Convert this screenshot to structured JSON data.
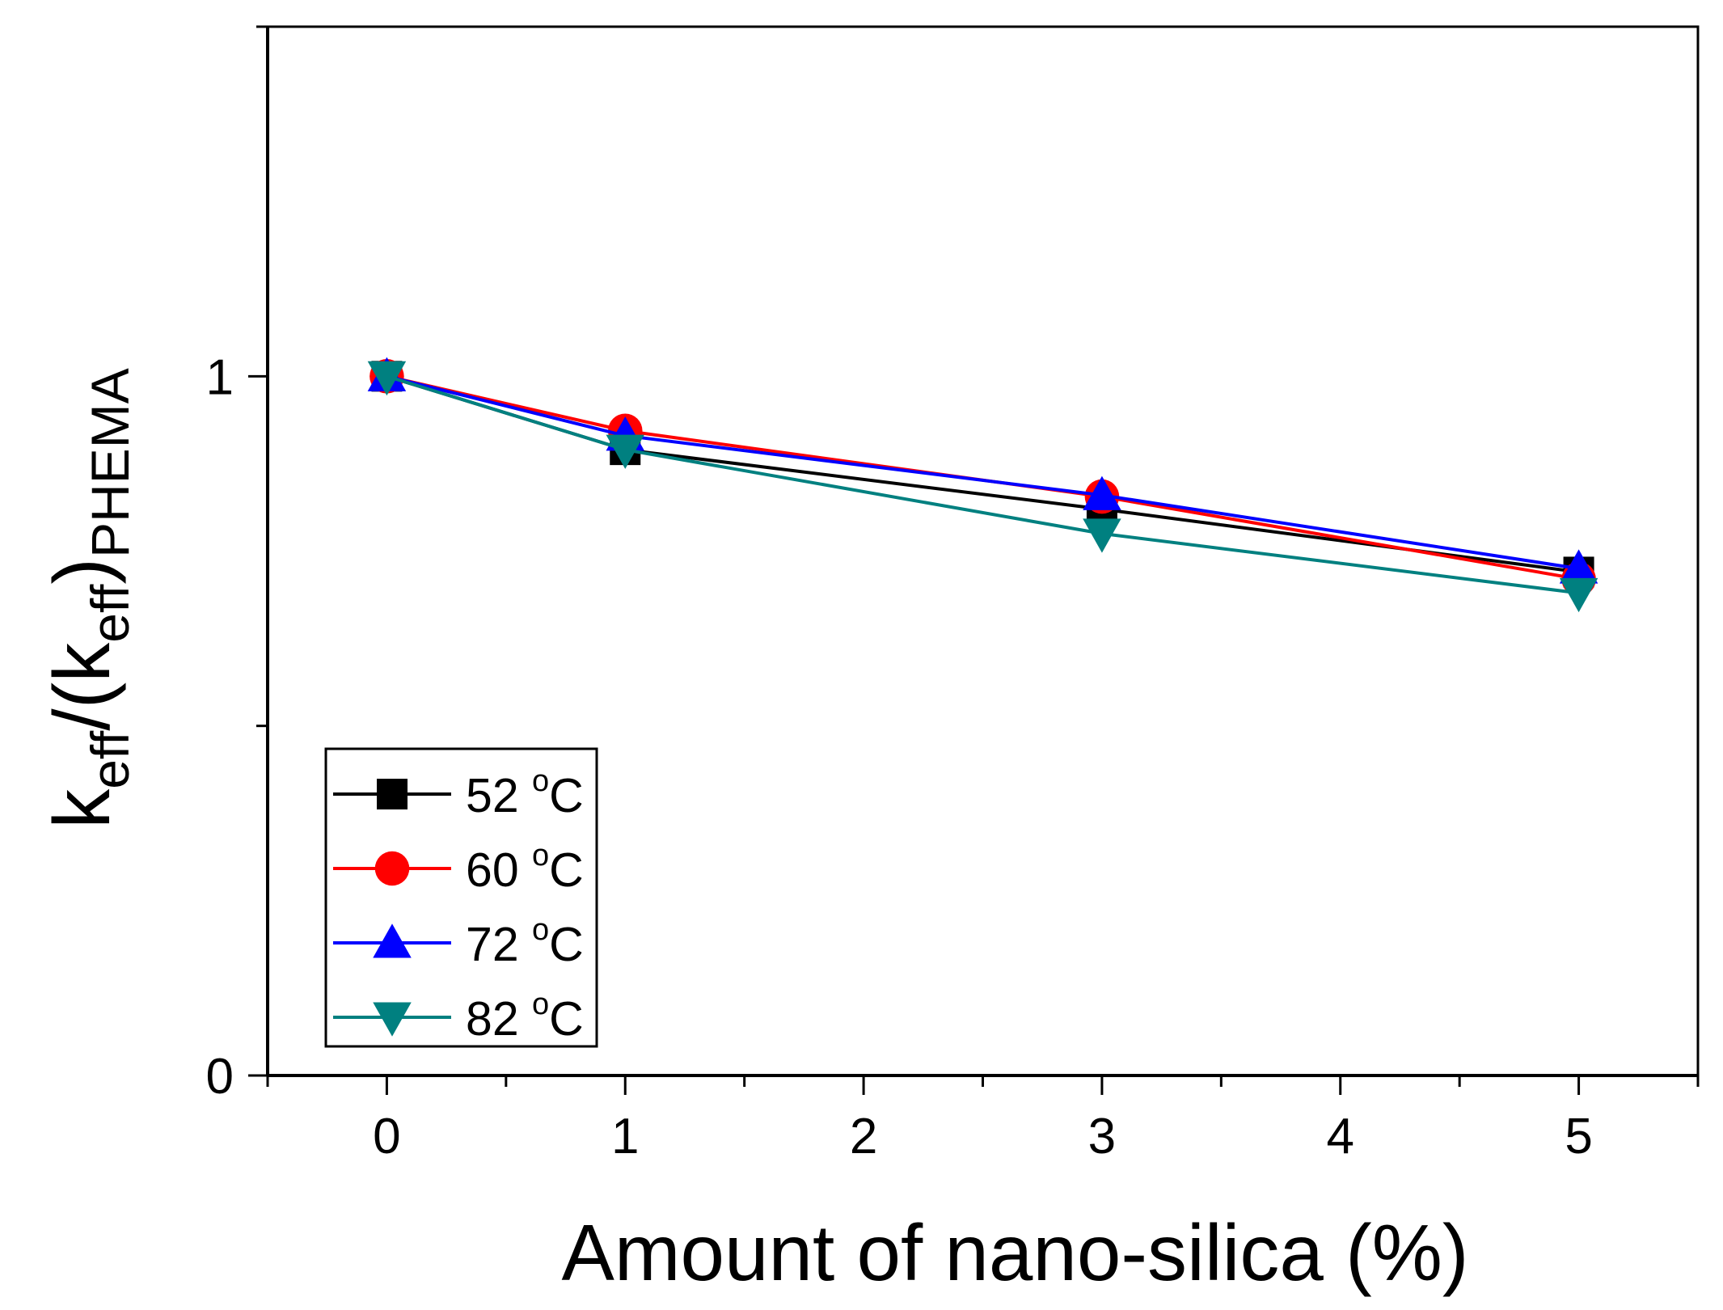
{
  "chart_data": {
    "type": "line",
    "xlabel": "Amount of nano-silica (%)",
    "ylabel": {
      "main": "k",
      "main_sub": "eff",
      "slash": "/(k",
      "inner_sub": "eff",
      "close": ")",
      "outer_sub": "PHEMA"
    },
    "xlim": [
      -0.5,
      5.5
    ],
    "ylim": [
      0,
      1.5
    ],
    "x_ticks": [
      {
        "value": 0,
        "label": "0"
      },
      {
        "value": 1,
        "label": "1"
      },
      {
        "value": 2,
        "label": "2"
      },
      {
        "value": 3,
        "label": "3"
      },
      {
        "value": 4,
        "label": "4"
      },
      {
        "value": 5,
        "label": "5"
      }
    ],
    "x_minor_ticks": [
      -0.5,
      0.5,
      1.5,
      2.5,
      3.5,
      4.5,
      5.5
    ],
    "y_ticks": [
      {
        "value": 0,
        "label": "0"
      },
      {
        "value": 1,
        "label": "1"
      }
    ],
    "y_minor_ticks": [
      0.5,
      1.5
    ],
    "grid": false,
    "legend_position": "bottom-left",
    "series": [
      {
        "name": "52 °C",
        "label_num": "52 ",
        "label_deg": "o",
        "label_unit": "C",
        "color": "#000000",
        "marker": "square",
        "x": [
          0,
          1,
          3,
          5
        ],
        "y": [
          1.0,
          0.895,
          0.81,
          0.72
        ]
      },
      {
        "name": "60 °C",
        "label_num": "60 ",
        "label_deg": "o",
        "label_unit": "C",
        "color": "#ff0000",
        "marker": "circle",
        "x": [
          0,
          1,
          3,
          5
        ],
        "y": [
          1.0,
          0.922,
          0.828,
          0.71
        ]
      },
      {
        "name": "72 °C",
        "label_num": "72 ",
        "label_deg": "o",
        "label_unit": "C",
        "color": "#0000ff",
        "marker": "triangle-up",
        "x": [
          0,
          1,
          3,
          5
        ],
        "y": [
          1.0,
          0.915,
          0.83,
          0.725
        ]
      },
      {
        "name": "82 °C",
        "label_num": "82 ",
        "label_deg": "o",
        "label_unit": "C",
        "color": "#008080",
        "marker": "triangle-down",
        "x": [
          0,
          1,
          3,
          5
        ],
        "y": [
          1.0,
          0.895,
          0.775,
          0.69
        ]
      }
    ]
  }
}
